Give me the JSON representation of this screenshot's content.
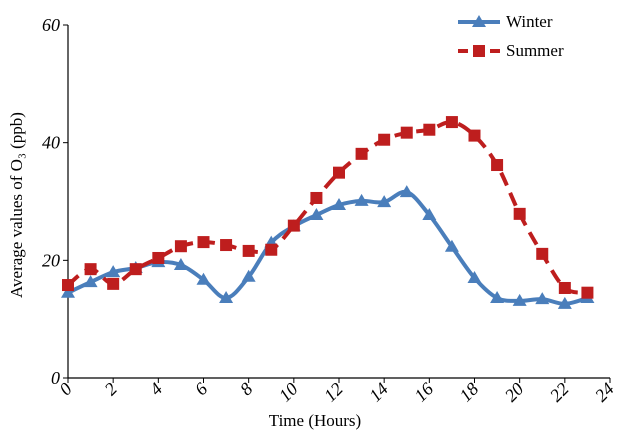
{
  "chart_data": {
    "type": "line",
    "x_label": "Time (Hours)",
    "y_label": "Average values of O₃  (ppb)",
    "x": [
      0,
      1,
      2,
      3,
      4,
      5,
      6,
      7,
      8,
      9,
      10,
      11,
      12,
      13,
      14,
      15,
      16,
      17,
      18,
      19,
      20,
      21,
      22,
      23
    ],
    "series": [
      {
        "name": "Winter",
        "color": "#4a7ebb",
        "marker": "triangle",
        "dashed": false,
        "values": [
          14.5,
          16.3,
          18,
          18.7,
          19.7,
          19.2,
          16.7,
          13.6,
          17.2,
          23,
          25.8,
          27.7,
          29.4,
          30.1,
          29.9,
          31.6,
          27.7,
          22.3,
          17,
          13.6,
          13.1,
          13.4,
          12.6,
          13.6
        ]
      },
      {
        "name": "Summer",
        "color": "#be1e1e",
        "marker": "square",
        "dashed": true,
        "values": [
          15.8,
          18.5,
          16,
          18.5,
          20.4,
          22.4,
          23.1,
          22.6,
          21.6,
          21.8,
          25.9,
          30.6,
          34.9,
          38.1,
          40.5,
          41.7,
          42.2,
          43.5,
          41.2,
          36.2,
          27.9,
          21.1,
          15.3,
          14.5
        ]
      }
    ],
    "xlim": [
      0,
      24
    ],
    "xticks": [
      0,
      2,
      4,
      6,
      8,
      10,
      12,
      14,
      16,
      18,
      20,
      22,
      24
    ],
    "ylim": [
      0,
      60
    ],
    "yticks": [
      0,
      20,
      40,
      60
    ],
    "legend": "top-right"
  }
}
